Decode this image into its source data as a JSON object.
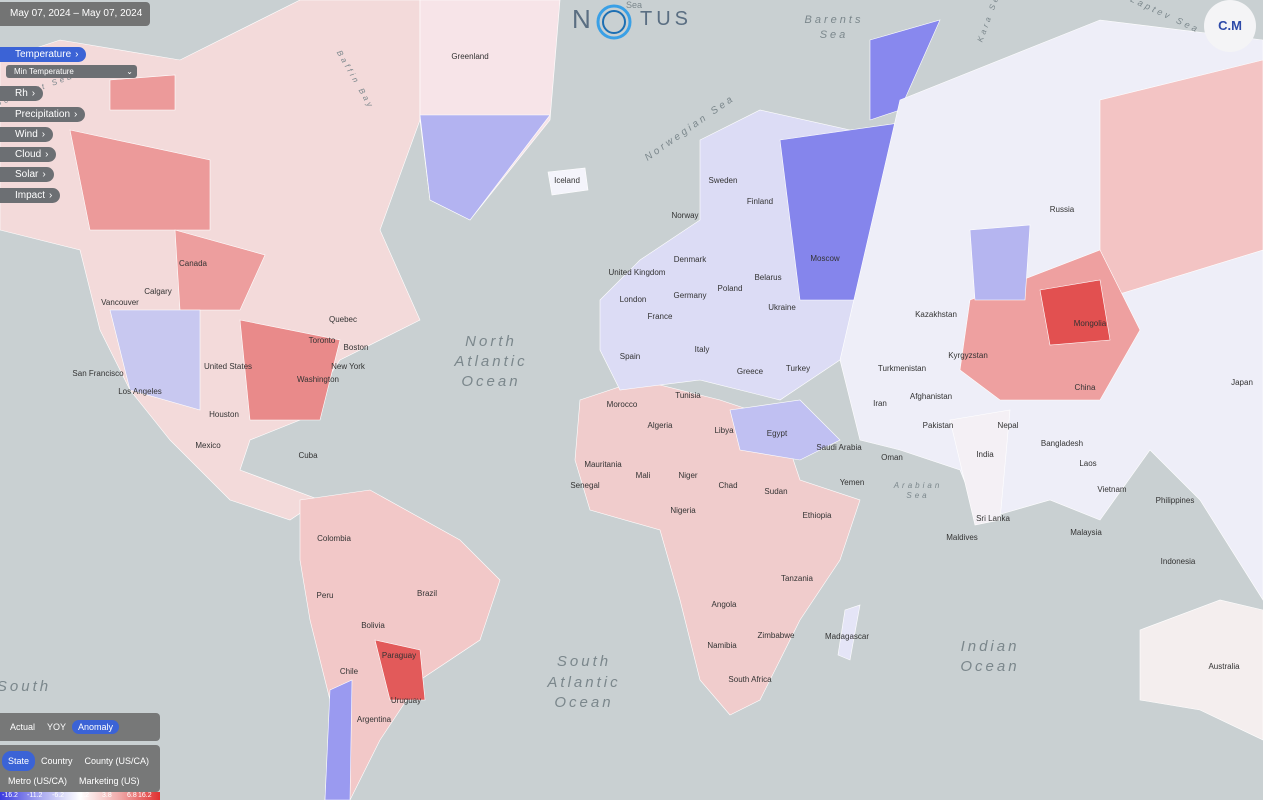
{
  "header": {
    "date_range": "May 07, 2024 – May 07, 2024",
    "logo_left": "N",
    "logo_sea": "Sea",
    "logo_right": "TUS",
    "user": "C.M"
  },
  "menu": {
    "items": [
      "Temperature",
      "Rh",
      "Precipitation",
      "Wind",
      "Cloud",
      "Solar",
      "Impact"
    ],
    "selected_metric": "Min Temperature"
  },
  "toggles": {
    "mode": [
      "Actual",
      "YOY",
      "Anomaly"
    ],
    "geography": [
      "State",
      "Country",
      "County (US/CA)",
      "Metro (US/CA)",
      "Marketing (US)"
    ]
  },
  "legend": {
    "labels": [
      "-16.2",
      "-11.2",
      "-6.2",
      "-1.2",
      "3.8",
      "6.8",
      "16.2"
    ]
  },
  "map": {
    "labels": [
      "Greenland",
      "Iceland",
      "Sweden",
      "Finland",
      "Norway",
      "Denmark",
      "United Kingdom",
      "Russia",
      "Canada",
      "Calgary",
      "Vancouver",
      "United States",
      "San Francisco",
      "Los Angeles",
      "Houston",
      "Mexico",
      "Cuba",
      "Toronto",
      "Quebec",
      "Boston",
      "New York",
      "Washington",
      "Poland",
      "Germany",
      "London",
      "France",
      "Ukraine",
      "Belarus",
      "Moscow",
      "Kazakhstan",
      "Spain",
      "Italy",
      "Greece",
      "Turkey",
      "Algeria",
      "Libya",
      "Egypt",
      "Mali",
      "Niger",
      "Chad",
      "Sudan",
      "Ethiopia",
      "Nigeria",
      "Angola",
      "Zimbabwe",
      "Namibia",
      "South Africa",
      "Madagascar",
      "Tanzania",
      "Colombia",
      "Brazil",
      "Peru",
      "Bolivia",
      "Paraguay",
      "Chile",
      "Argentina",
      "Uruguay",
      "Mongolia",
      "China",
      "Iran",
      "Afghanistan",
      "Pakistan",
      "India",
      "Nepal",
      "Bangladesh",
      "Laos",
      "Vietnam",
      "Philippines",
      "Malaysia",
      "Indonesia",
      "Maldives",
      "Saudi Arabia",
      "Yemen",
      "Oman",
      "Turkmenistan",
      "Kyrgyzstan",
      "Japan",
      "Australia",
      "Sri Lanka",
      "Morocco",
      "Tunisia",
      "Mauritania",
      "Senegal"
    ],
    "water_labels": [
      "North",
      "Atlantic",
      "Ocean",
      "South",
      "Atlantic",
      "Ocean",
      "Indian",
      "Ocean",
      "Barents",
      "Sea",
      "Norwegian Sea",
      "Arabian",
      "Sea",
      "Baffin Bay",
      "Kara Sea",
      "Laptev Sea",
      "Beaufort Sea",
      "South"
    ]
  }
}
